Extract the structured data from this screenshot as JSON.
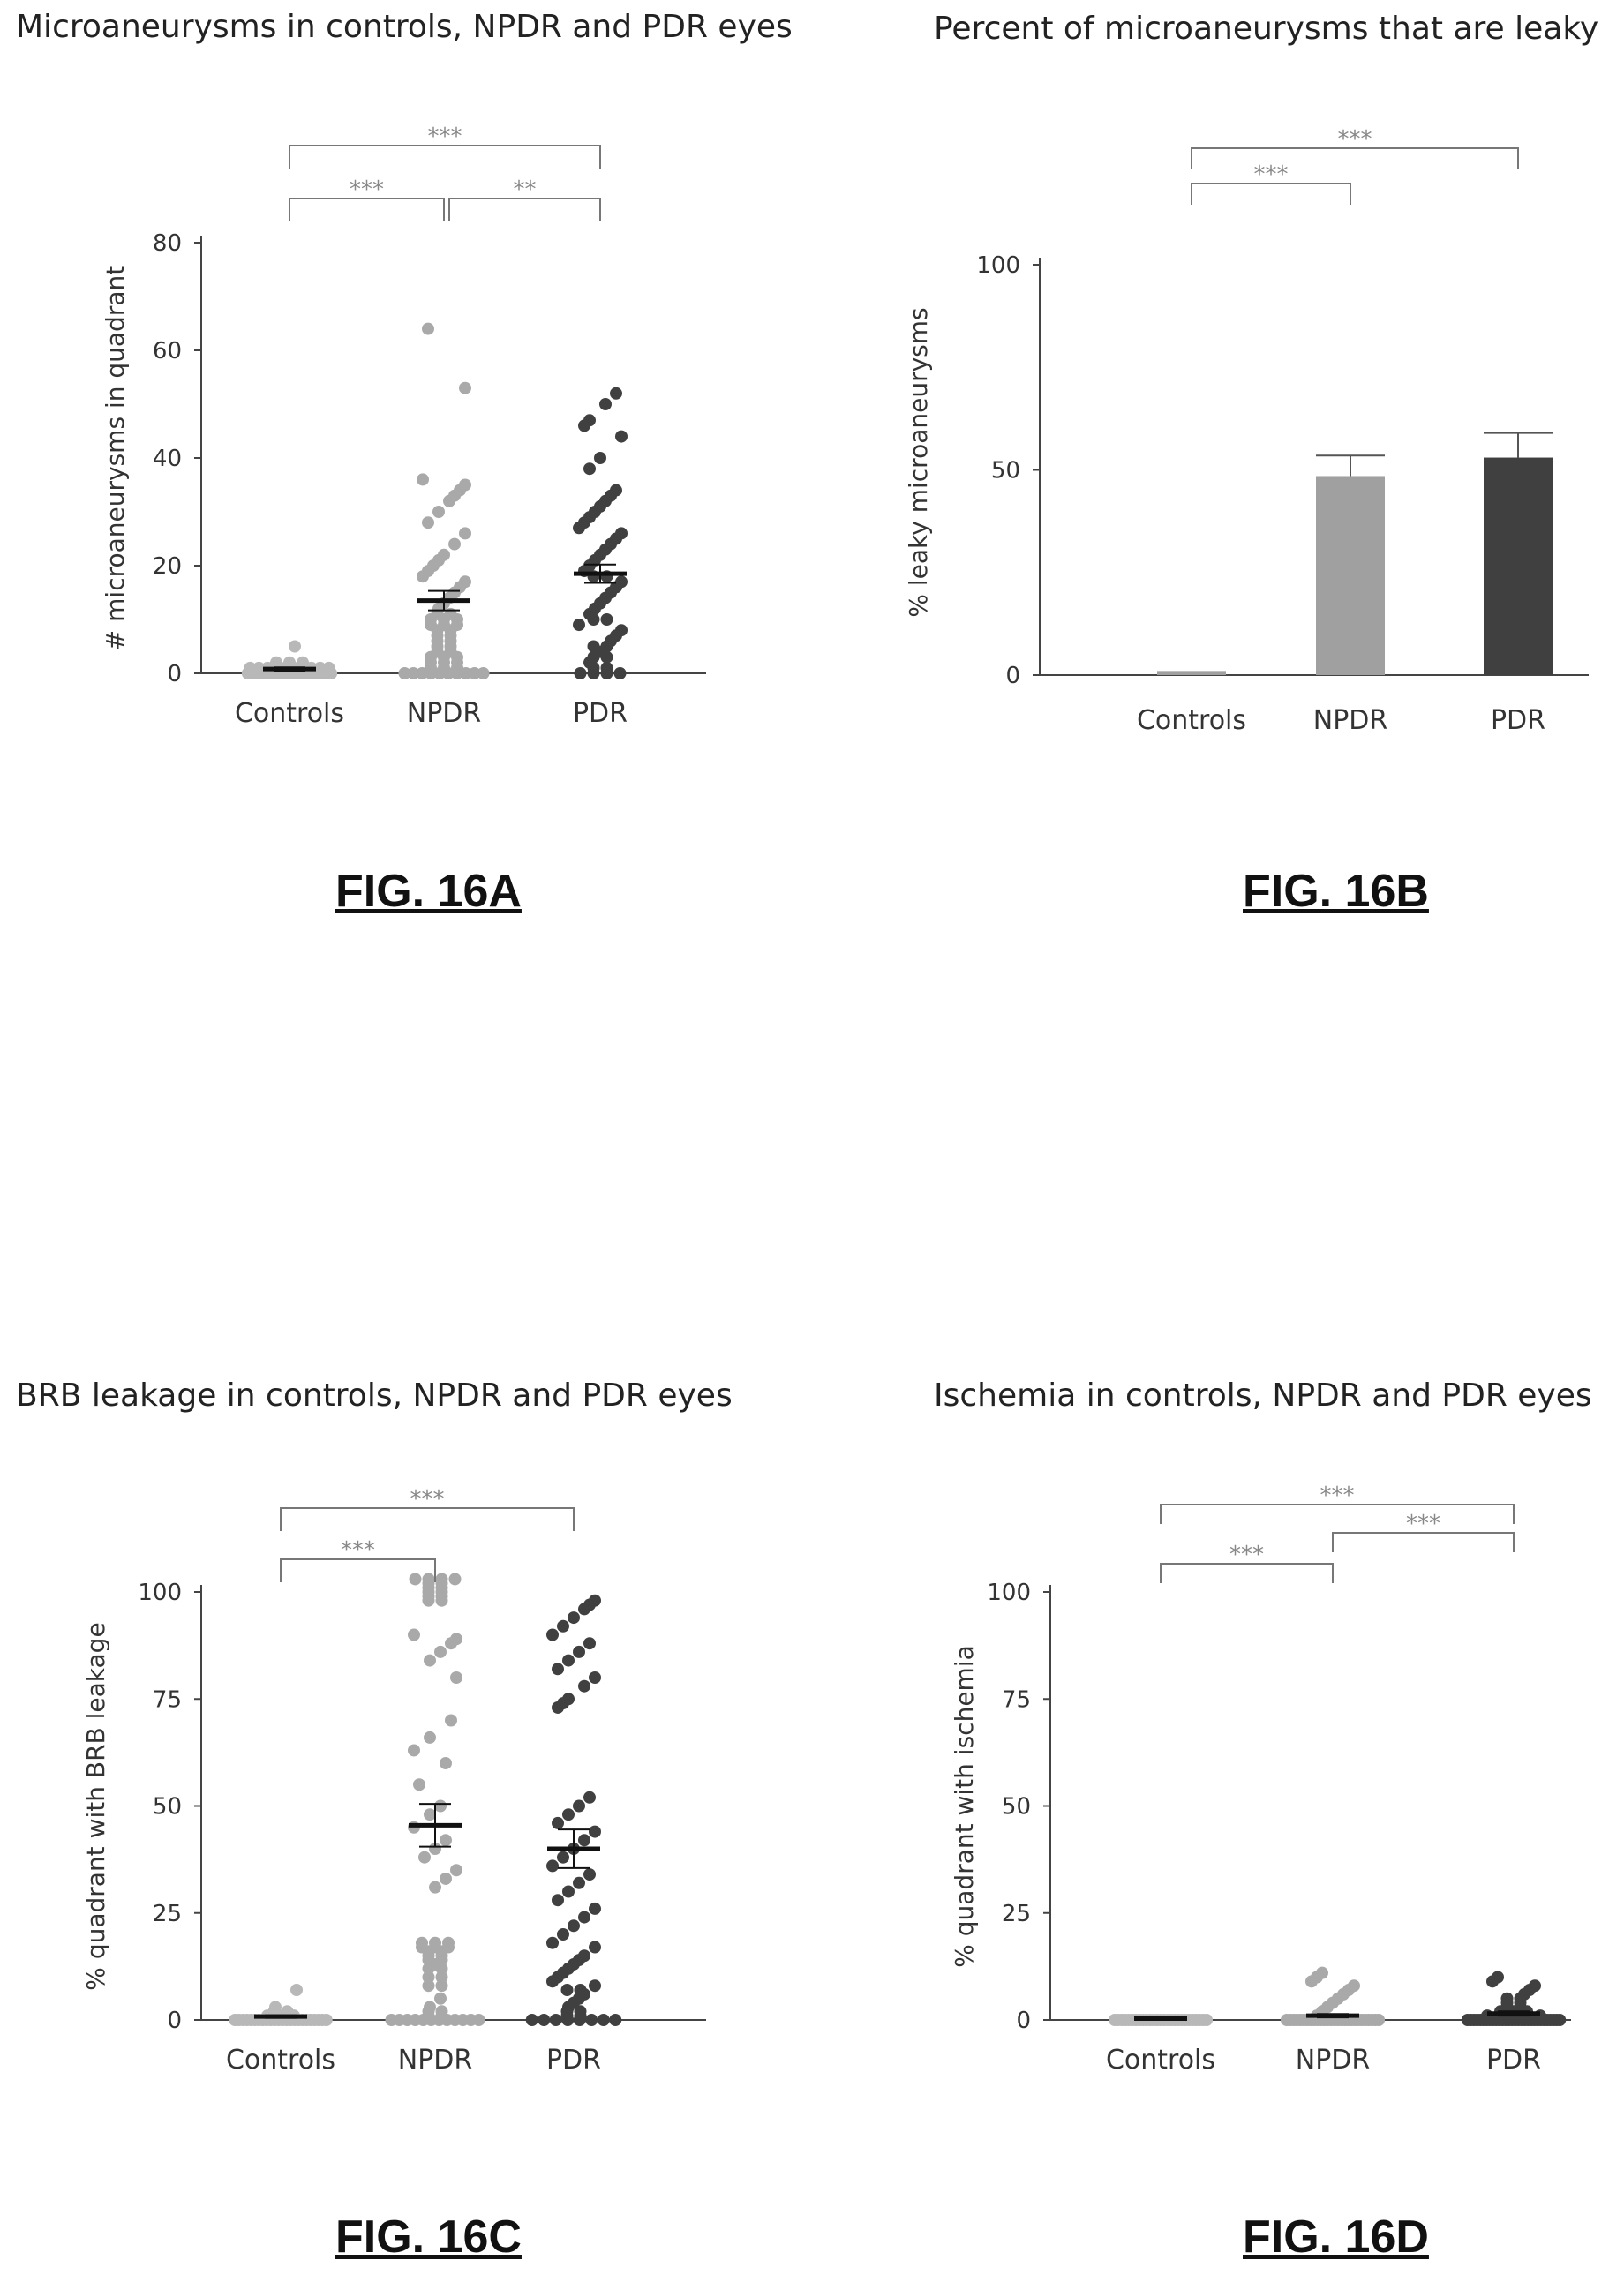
{
  "chart_data": [
    {
      "id": "A",
      "type": "scatter",
      "title": "Microaneurysms in controls, NPDR and PDR eyes",
      "figure_label": "FIG. 16A",
      "ylabel": "# microaneurysms in quadrant",
      "ylim": [
        0,
        80
      ],
      "yticks": [
        0,
        20,
        40,
        60,
        80
      ],
      "categories": [
        "Controls",
        "NPDR",
        "PDR"
      ],
      "colors": [
        "#b8b8b8",
        "#a9a9a9",
        "#404040"
      ],
      "points": [
        [
          0,
          0,
          0,
          0,
          0,
          0,
          0,
          0,
          0,
          0,
          0,
          0,
          0,
          0,
          0,
          0,
          0,
          0,
          0,
          0,
          0,
          1,
          1,
          1,
          1,
          1,
          1,
          1,
          1,
          1,
          1,
          2,
          2,
          2,
          5
        ],
        [
          0,
          0,
          0,
          0,
          0,
          0,
          0,
          0,
          0,
          0,
          1,
          1,
          1,
          2,
          2,
          2,
          3,
          3,
          3,
          4,
          4,
          5,
          5,
          6,
          6,
          7,
          7,
          8,
          8,
          9,
          9,
          9,
          10,
          10,
          10,
          11,
          11,
          12,
          13,
          14,
          15,
          16,
          17,
          18,
          19,
          20,
          21,
          22,
          24,
          26,
          28,
          30,
          32,
          33,
          34,
          35,
          36,
          53,
          64
        ],
        [
          0,
          0,
          0,
          0,
          1,
          1,
          2,
          3,
          3,
          4,
          5,
          5,
          6,
          7,
          8,
          9,
          10,
          10,
          11,
          12,
          13,
          14,
          15,
          16,
          17,
          18,
          18,
          19,
          20,
          21,
          22,
          23,
          24,
          25,
          26,
          27,
          28,
          29,
          30,
          31,
          32,
          33,
          34,
          38,
          40,
          44,
          46,
          47,
          50,
          52
        ]
      ],
      "means": [
        0.8,
        13.5,
        18.5
      ],
      "sem": [
        0.3,
        1.8,
        1.7
      ],
      "significance": [
        {
          "from": 0,
          "to": 1,
          "label": "***"
        },
        {
          "from": 0,
          "to": 2,
          "label": "***"
        },
        {
          "from": 1,
          "to": 2,
          "label": "**"
        }
      ]
    },
    {
      "id": "B",
      "type": "bar",
      "title": "Percent of microaneurysms that are leaky",
      "figure_label": "FIG. 16B",
      "ylabel": "% leaky microaneurysms",
      "ylim": [
        0,
        100
      ],
      "yticks": [
        0,
        50,
        100
      ],
      "categories": [
        "Controls",
        "NPDR",
        "PDR"
      ],
      "colors": [
        "#a0a0a0",
        "#a0a0a0",
        "#404040"
      ],
      "values": [
        1,
        48.5,
        53
      ],
      "errors": [
        0,
        5,
        6
      ],
      "significance": [
        {
          "from": 0,
          "to": 1,
          "label": "***"
        },
        {
          "from": 0,
          "to": 2,
          "label": "***"
        }
      ]
    },
    {
      "id": "C",
      "type": "scatter",
      "title": "BRB leakage in controls, NPDR and PDR eyes",
      "figure_label": "FIG. 16C",
      "ylabel": "% quadrant with BRB leakage",
      "ylim": [
        0,
        100
      ],
      "yticks": [
        0,
        25,
        50,
        75,
        100
      ],
      "categories": [
        "Controls",
        "NPDR",
        "PDR"
      ],
      "colors": [
        "#b8b8b8",
        "#a9a9a9",
        "#404040"
      ],
      "points": [
        [
          0,
          0,
          0,
          0,
          0,
          0,
          0,
          0,
          0,
          0,
          0,
          0,
          0,
          0,
          0,
          0,
          0,
          0,
          0,
          0,
          0,
          0,
          0,
          0,
          1,
          1,
          1,
          2,
          2,
          3,
          7
        ],
        [
          0,
          0,
          0,
          0,
          0,
          0,
          0,
          0,
          0,
          0,
          0,
          0,
          1,
          1,
          2,
          2,
          3,
          5,
          8,
          10,
          12,
          13,
          14,
          15,
          16,
          17,
          17,
          18,
          18,
          18,
          17,
          16,
          15,
          14,
          12,
          10,
          8,
          31,
          33,
          35,
          38,
          40,
          42,
          45,
          48,
          50,
          55,
          60,
          63,
          66,
          70,
          80,
          84,
          86,
          88,
          89,
          90,
          98,
          99,
          100,
          101,
          102,
          103,
          103,
          103,
          103,
          102,
          101,
          100,
          99,
          98
        ],
        [
          0,
          0,
          0,
          0,
          0,
          0,
          0,
          0,
          1,
          1,
          2,
          2,
          3,
          4,
          5,
          6,
          7,
          7,
          8,
          9,
          10,
          11,
          12,
          13,
          14,
          15,
          17,
          18,
          20,
          22,
          24,
          26,
          28,
          30,
          32,
          34,
          36,
          38,
          40,
          42,
          44,
          46,
          48,
          50,
          52,
          73,
          74,
          75,
          78,
          80,
          82,
          84,
          86,
          88,
          90,
          92,
          94,
          96,
          97,
          98
        ]
      ],
      "means": [
        0.8,
        45.5,
        40
      ],
      "sem": [
        0.3,
        5,
        4.5
      ],
      "significance": [
        {
          "from": 0,
          "to": 1,
          "label": "***"
        },
        {
          "from": 0,
          "to": 2,
          "label": "***"
        }
      ]
    },
    {
      "id": "D",
      "type": "scatter",
      "title": "Ischemia in controls, NPDR and PDR eyes",
      "figure_label": "FIG. 16D",
      "ylabel": "% quadrant with ischemia",
      "ylim": [
        0,
        100
      ],
      "yticks": [
        0,
        25,
        50,
        75,
        100
      ],
      "categories": [
        "Controls",
        "NPDR",
        "PDR"
      ],
      "colors": [
        "#b8b8b8",
        "#a9a9a9",
        "#404040"
      ],
      "points": [
        [
          0,
          0,
          0,
          0,
          0,
          0,
          0,
          0,
          0,
          0,
          0,
          0,
          0,
          0,
          0,
          0,
          0,
          0,
          0,
          0,
          0,
          0,
          0,
          0,
          0,
          0,
          0
        ],
        [
          0,
          0,
          0,
          0,
          0,
          0,
          0,
          0,
          0,
          0,
          0,
          0,
          0,
          0,
          0,
          0,
          0,
          0,
          0,
          0,
          0,
          0,
          0,
          0,
          0,
          0,
          0,
          0,
          1,
          2,
          3,
          4,
          5,
          6,
          7,
          8,
          9,
          10,
          11
        ],
        [
          0,
          0,
          0,
          0,
          0,
          0,
          0,
          0,
          0,
          0,
          0,
          0,
          0,
          0,
          0,
          0,
          0,
          0,
          0,
          0,
          0,
          0,
          0,
          0,
          0,
          0,
          0,
          0,
          0,
          0,
          1,
          1,
          1,
          1,
          1,
          2,
          2,
          2,
          3,
          3,
          4,
          4,
          5,
          5,
          6,
          7,
          8,
          9,
          10
        ]
      ],
      "means": [
        0.3,
        1,
        1.5
      ],
      "sem": [
        0.1,
        0.4,
        0.5
      ],
      "significance": [
        {
          "from": 0,
          "to": 1,
          "label": "***"
        },
        {
          "from": 0,
          "to": 2,
          "label": "***"
        },
        {
          "from": 1,
          "to": 2,
          "label": "***"
        }
      ]
    }
  ]
}
